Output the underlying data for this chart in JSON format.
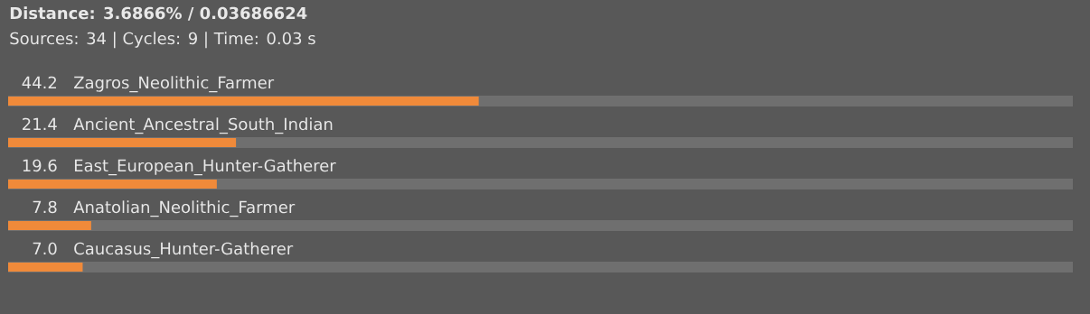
{
  "chart_data": {
    "type": "bar",
    "orientation": "horizontal",
    "title": "Distance: 3.6866% / 0.03686624",
    "subtitle": "Sources: 34 | Cycles: 9 | Time: 0.03 s",
    "categories": [
      "Zagros_Neolithic_Farmer",
      "Ancient_Ancestral_South_Indian",
      "East_European_Hunter-Gatherer",
      "Anatolian_Neolithic_Farmer",
      "Caucasus_Hunter-Gatherer"
    ],
    "values": [
      44.2,
      21.4,
      19.6,
      7.8,
      7.0
    ],
    "value_labels": [
      "44.2",
      "21.4",
      "19.6",
      "7.8",
      "7.0"
    ],
    "color": "#f08a3a",
    "xlim": [
      0,
      100
    ]
  }
}
